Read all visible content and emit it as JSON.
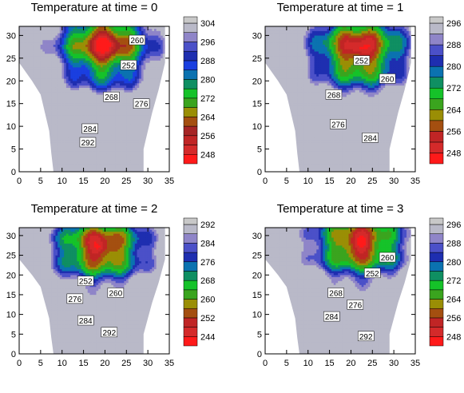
{
  "chart_data": [
    {
      "type": "contour",
      "title": "Temperature at time = 0",
      "xlabel": "",
      "ylabel": "",
      "xlim": [
        0,
        35
      ],
      "ylim": [
        0,
        32
      ],
      "xticks": [
        0,
        5,
        10,
        15,
        20,
        25,
        30,
        35
      ],
      "yticks": [
        0,
        5,
        10,
        15,
        20,
        25,
        30
      ],
      "colorbar_levels": [
        248,
        252,
        256,
        260,
        264,
        268,
        272,
        276,
        280,
        284,
        288,
        292,
        296,
        300,
        304
      ],
      "colorbar_labels": [
        "248",
        "256",
        "264",
        "272",
        "280",
        "288",
        "296",
        "304"
      ],
      "contour_labels": [
        {
          "text": "260",
          "x": 27.5,
          "y": 29
        },
        {
          "text": "252",
          "x": 25.5,
          "y": 23.5
        },
        {
          "text": "268",
          "x": 21.5,
          "y": 16.5
        },
        {
          "text": "276",
          "x": 28.5,
          "y": 15
        },
        {
          "text": "284",
          "x": 16.5,
          "y": 9.5
        },
        {
          "text": "292",
          "x": 16.0,
          "y": 6.5
        }
      ]
    },
    {
      "type": "contour",
      "title": "Temperature at time = 1",
      "xlabel": "",
      "ylabel": "",
      "xlim": [
        0,
        35
      ],
      "ylim": [
        0,
        32
      ],
      "xticks": [
        0,
        5,
        10,
        15,
        20,
        25,
        30,
        35
      ],
      "yticks": [
        0,
        5,
        10,
        15,
        20,
        25,
        30
      ],
      "colorbar_levels": [
        248,
        252,
        256,
        260,
        264,
        268,
        272,
        276,
        280,
        284,
        288,
        292,
        296
      ],
      "colorbar_labels": [
        "248",
        "256",
        "264",
        "272",
        "280",
        "288",
        "296"
      ],
      "contour_labels": [
        {
          "text": "252",
          "x": 22.5,
          "y": 24.5
        },
        {
          "text": "260",
          "x": 28.5,
          "y": 20.5
        },
        {
          "text": "268",
          "x": 16.0,
          "y": 17.0
        },
        {
          "text": "276",
          "x": 17.0,
          "y": 10.5
        },
        {
          "text": "284",
          "x": 24.5,
          "y": 7.5
        }
      ]
    },
    {
      "type": "contour",
      "title": "Temperature at time = 2",
      "xlabel": "",
      "ylabel": "",
      "xlim": [
        0,
        35
      ],
      "ylim": [
        0,
        32
      ],
      "xticks": [
        0,
        5,
        10,
        15,
        20,
        25,
        30,
        35
      ],
      "yticks": [
        0,
        5,
        10,
        15,
        20,
        25,
        30
      ],
      "colorbar_levels": [
        244,
        248,
        252,
        256,
        260,
        264,
        268,
        272,
        276,
        280,
        284,
        288,
        292
      ],
      "colorbar_labels": [
        "244",
        "252",
        "260",
        "268",
        "276",
        "284",
        "292"
      ],
      "contour_labels": [
        {
          "text": "252",
          "x": 15.5,
          "y": 18.5
        },
        {
          "text": "260",
          "x": 22.5,
          "y": 15.5
        },
        {
          "text": "276",
          "x": 13.0,
          "y": 14.0
        },
        {
          "text": "284",
          "x": 15.5,
          "y": 8.5
        },
        {
          "text": "292",
          "x": 21.0,
          "y": 5.5
        }
      ]
    },
    {
      "type": "contour",
      "title": "Temperature at time = 3",
      "xlabel": "",
      "ylabel": "",
      "xlim": [
        0,
        35
      ],
      "ylim": [
        0,
        32
      ],
      "xticks": [
        0,
        5,
        10,
        15,
        20,
        25,
        30,
        35
      ],
      "yticks": [
        0,
        5,
        10,
        15,
        20,
        25,
        30
      ],
      "colorbar_levels": [
        248,
        252,
        256,
        260,
        264,
        268,
        272,
        276,
        280,
        284,
        288,
        292,
        296
      ],
      "colorbar_labels": [
        "248",
        "256",
        "264",
        "272",
        "280",
        "288",
        "296"
      ],
      "contour_labels": [
        {
          "text": "260",
          "x": 28.5,
          "y": 24.5
        },
        {
          "text": "252",
          "x": 25.0,
          "y": 20.5
        },
        {
          "text": "268",
          "x": 16.5,
          "y": 15.5
        },
        {
          "text": "276",
          "x": 21.0,
          "y": 12.5
        },
        {
          "text": "284",
          "x": 15.5,
          "y": 9.5
        },
        {
          "text": "292",
          "x": 23.5,
          "y": 4.5
        }
      ]
    }
  ]
}
